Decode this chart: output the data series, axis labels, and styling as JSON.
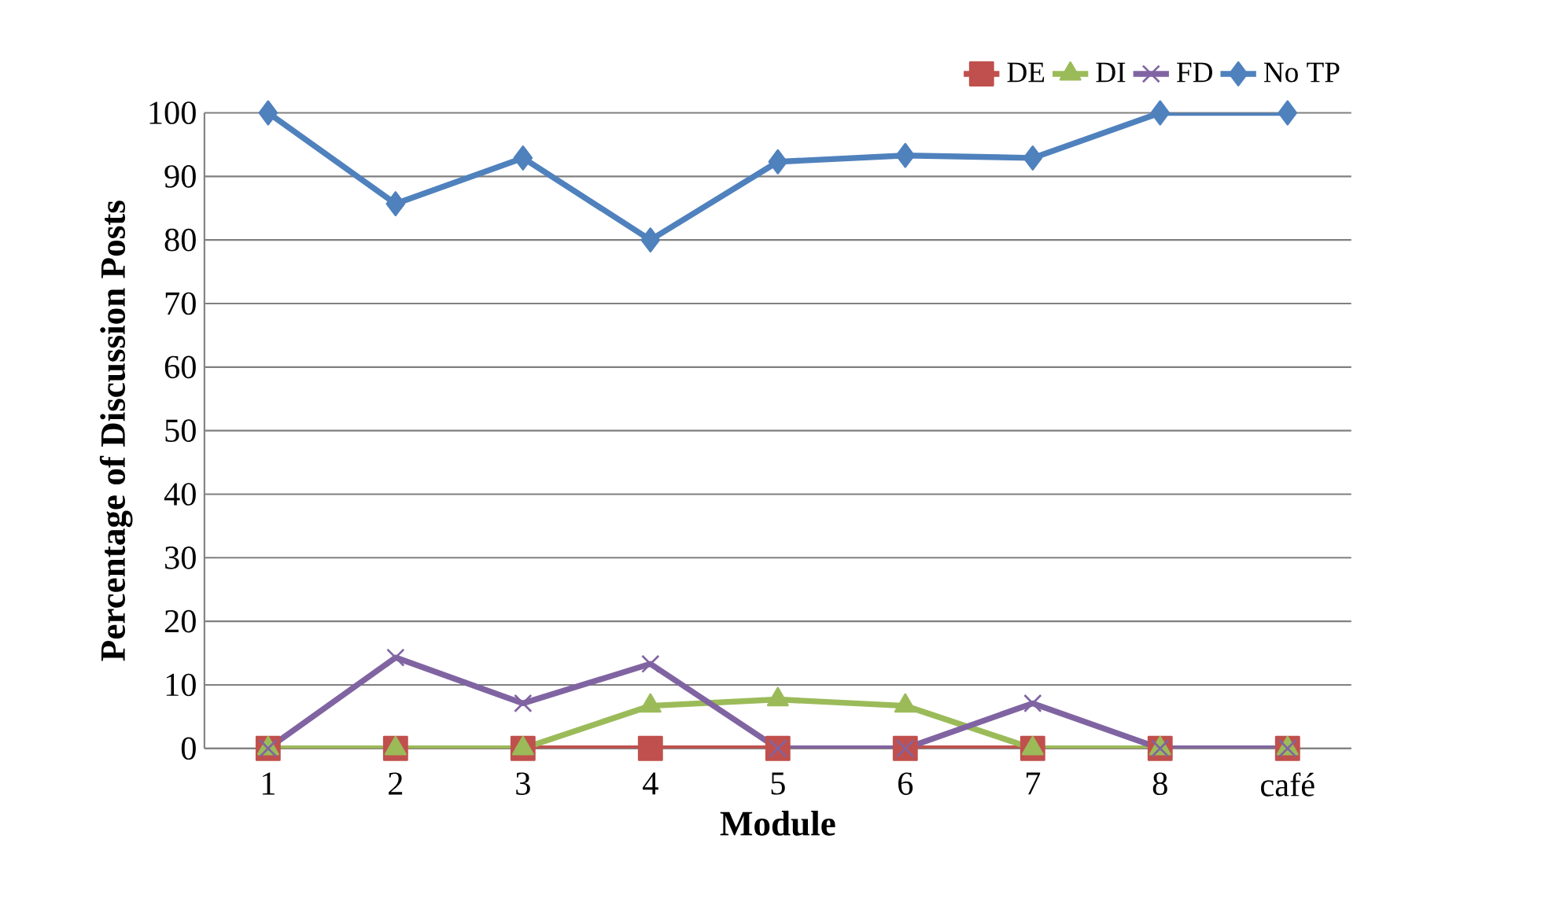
{
  "chart_data": {
    "type": "line",
    "xlabel": "Module",
    "ylabel": "Percentage of Discussion Posts",
    "categories": [
      "1",
      "2",
      "3",
      "4",
      "5",
      "6",
      "7",
      "8",
      "café"
    ],
    "ylim": [
      0,
      100
    ],
    "yticks": [
      0,
      10,
      20,
      30,
      40,
      50,
      60,
      70,
      80,
      90,
      100
    ],
    "grid": "y",
    "legend": "top right",
    "series": [
      {
        "name": "DE",
        "color": "#c0504d",
        "marker": "square",
        "values": [
          0,
          0,
          0,
          0,
          0,
          0,
          0,
          0,
          0
        ]
      },
      {
        "name": "DI",
        "color": "#9bbb59",
        "marker": "triangle",
        "values": [
          0,
          0,
          0,
          6.7,
          7.7,
          6.7,
          0,
          0,
          0
        ]
      },
      {
        "name": "FD",
        "color": "#8064a2",
        "marker": "cross",
        "values": [
          0,
          14.3,
          7.1,
          13.3,
          0,
          0,
          7.1,
          0,
          0
        ]
      },
      {
        "name": "No TP",
        "color": "#4f81bd",
        "marker": "diamond",
        "values": [
          100,
          85.7,
          92.9,
          80,
          92.3,
          93.3,
          92.9,
          100,
          100
        ]
      }
    ]
  }
}
